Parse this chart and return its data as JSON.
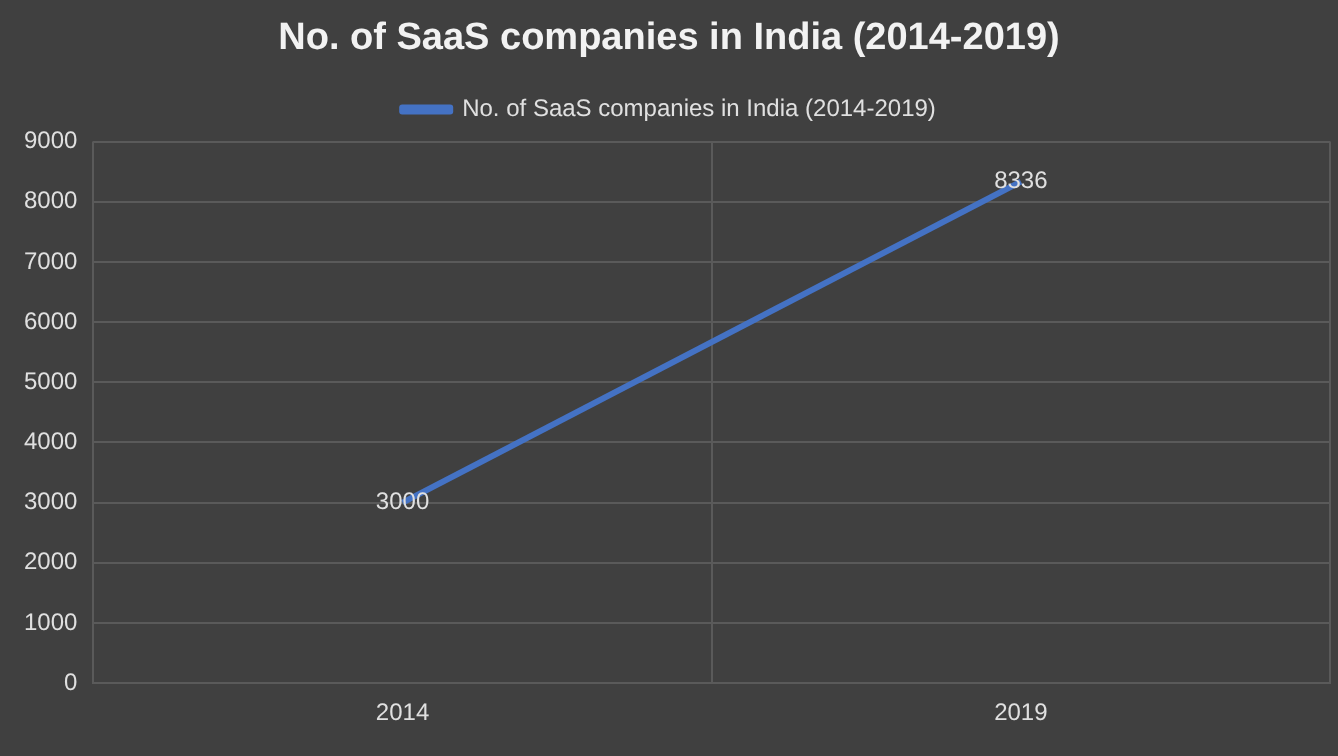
{
  "chart_data": {
    "type": "line",
    "title": "No. of SaaS companies in India (2014-2019)",
    "categories": [
      "2014",
      "2019"
    ],
    "series": [
      {
        "name": "No. of SaaS companies in India (2014-2019)",
        "color": "#4472c4",
        "values": [
          3000,
          8336
        ]
      }
    ],
    "ylim": [
      0,
      9000
    ],
    "yticks": [
      0,
      1000,
      2000,
      3000,
      4000,
      5000,
      6000,
      7000,
      8000,
      9000
    ],
    "grid": true,
    "legend": "top",
    "data_labels": true,
    "marker": "none",
    "line_style": "solid"
  }
}
